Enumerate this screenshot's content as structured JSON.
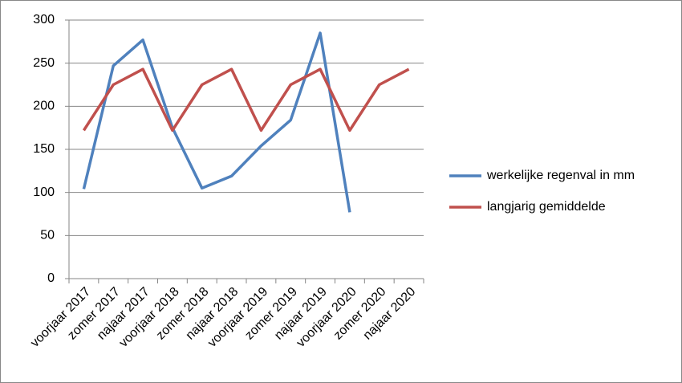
{
  "chart_data": {
    "type": "line",
    "categories": [
      "voorjaar 2017",
      "zomer 2017",
      "najaar 2017",
      "voorjaar 2018",
      "zomer 2018",
      "najaar 2018",
      "voorjaar 2019",
      "zomer 2019",
      "najaar 2019",
      "voorjaar 2020",
      "zomer 2020",
      "najaar 2020"
    ],
    "series": [
      {
        "name": "werkelijke regenval in mm",
        "color": "#4f81bd",
        "values": [
          104,
          247,
          277,
          175,
          105,
          119,
          154,
          184,
          285,
          77,
          null,
          null
        ]
      },
      {
        "name": "langjarig gemiddelde",
        "color": "#c0504d",
        "values": [
          172,
          225,
          243,
          172,
          225,
          243,
          172,
          225,
          243,
          172,
          225,
          243
        ]
      }
    ],
    "ylim": [
      0,
      300
    ],
    "yticks": [
      0,
      50,
      100,
      150,
      200,
      250,
      300
    ],
    "grid": true,
    "legend": "right"
  }
}
